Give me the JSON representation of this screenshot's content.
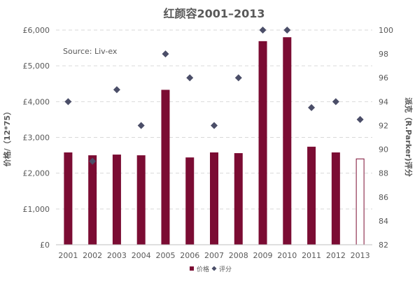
{
  "chart_data": {
    "type": "bar",
    "title": "红颜容2001–2013",
    "source_note": "Source: Liv-ex",
    "categories": [
      "2001",
      "2002",
      "2003",
      "2004",
      "2005",
      "2006",
      "2007",
      "2008",
      "2009",
      "2010",
      "2011",
      "2012",
      "2013"
    ],
    "series": [
      {
        "name": "价格",
        "type": "bar",
        "axis": "left",
        "color": "#7b0c33",
        "values": [
          2580,
          2500,
          2520,
          2500,
          4330,
          2440,
          2580,
          2560,
          5690,
          5800,
          2740,
          2580,
          2400
        ],
        "hollow_last": true
      },
      {
        "name": "评分",
        "type": "scatter",
        "axis": "right",
        "color": "#4b4e68",
        "values": [
          94,
          89,
          95,
          92,
          98,
          96,
          92,
          96,
          100,
          100,
          93.5,
          94,
          92.5
        ]
      }
    ],
    "ylabel_left": "价格/（12*75）",
    "ylabel_right": "派克（R.Parker)评分",
    "ylim_left": [
      0,
      6000
    ],
    "ylim_right": [
      82,
      100
    ],
    "yticks_left": [
      "£0",
      "£1,000",
      "£2,000",
      "£3,000",
      "£4,000",
      "£5,000",
      "£6,000"
    ],
    "yticks_right": [
      "82",
      "84",
      "86",
      "88",
      "90",
      "92",
      "94",
      "96",
      "98",
      "100"
    ],
    "grid": true,
    "legend": {
      "position": "bottom",
      "items": [
        "价格",
        "评分"
      ]
    }
  }
}
